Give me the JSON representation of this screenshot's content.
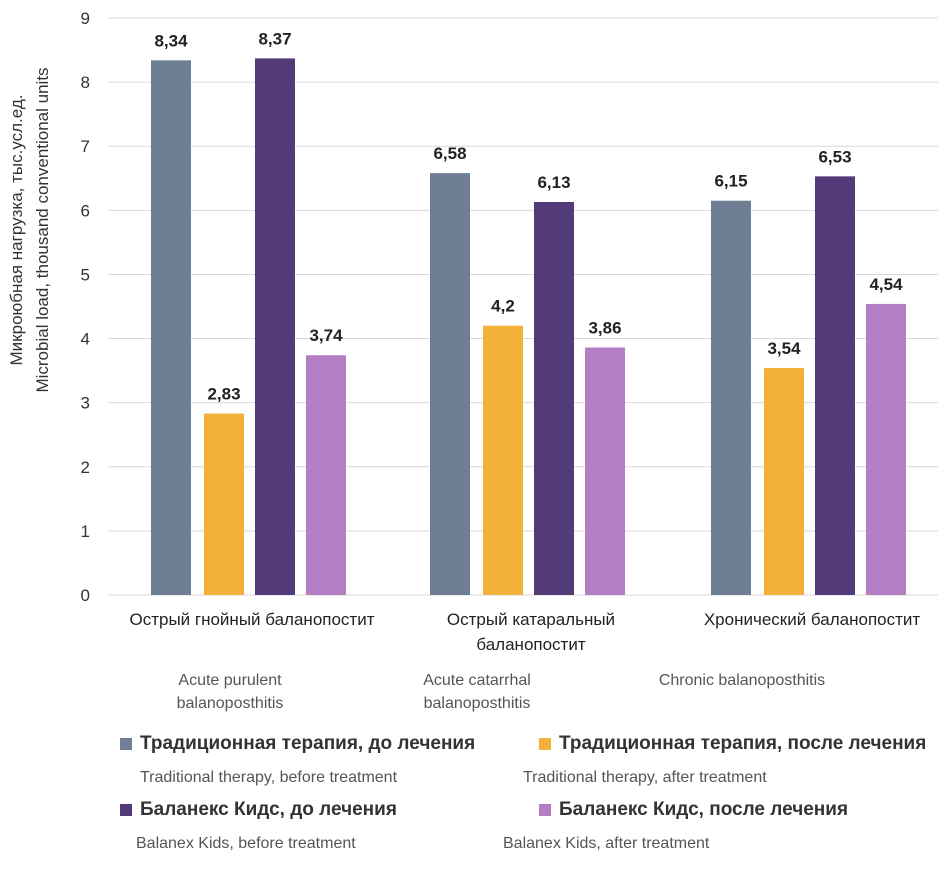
{
  "chart_data": {
    "type": "bar",
    "ylabel": "Микроюбная нагрузка, тыс.усл.ед.",
    "ylabel_en": "Microbial load, thousand conventional units",
    "ylim": [
      0,
      9
    ],
    "yticks": [
      "0",
      "1",
      "2",
      "3",
      "4",
      "5",
      "6",
      "7",
      "8",
      "9"
    ],
    "grid": true,
    "categories": [
      "Острый гнойный баланопостит",
      "Острый катаральный баланопостит",
      "Хронический баланопостит"
    ],
    "categories_ru_lines": [
      [
        "Острый гнойный баланопостит"
      ],
      [
        "Острый катаральный",
        "баланопостит"
      ],
      [
        "Хронический баланопостит"
      ]
    ],
    "categories_en": [
      [
        "Acute purulent",
        "balanoposthitis"
      ],
      [
        "Acute catarrhal",
        "balanoposthitis"
      ],
      [
        "Chronic balanoposthitis"
      ]
    ],
    "series": [
      {
        "name": "Традиционная терапия, до лечения",
        "name_en": "Traditional therapy, before treatment",
        "color": "#6e7f94",
        "values": [
          8.34,
          6.58,
          6.15
        ],
        "labels": [
          "8,34",
          "6,58",
          "6,15"
        ]
      },
      {
        "name": "Традиционная терапия, после лечения",
        "name_en": "Traditional therapy, after treatment",
        "color": "#f4b13a",
        "values": [
          2.83,
          4.2,
          3.54
        ],
        "labels": [
          "2,83",
          "4,2",
          "3,54"
        ]
      },
      {
        "name": "Баланекс Кидс, до лечения",
        "name_en": "Balanex Kids, before treatment",
        "color": "#533b7a",
        "values": [
          8.37,
          6.13,
          6.53
        ],
        "labels": [
          "8,37",
          "6,13",
          "6,53"
        ]
      },
      {
        "name": "Баланекс Кидс, после лечения",
        "name_en": "Balanex Kids, after treatment",
        "color": "#b57dc4",
        "values": [
          3.74,
          3.86,
          4.54
        ],
        "labels": [
          "3,74",
          "3,86",
          "4,54"
        ]
      }
    ],
    "legend_position": "bottom"
  }
}
